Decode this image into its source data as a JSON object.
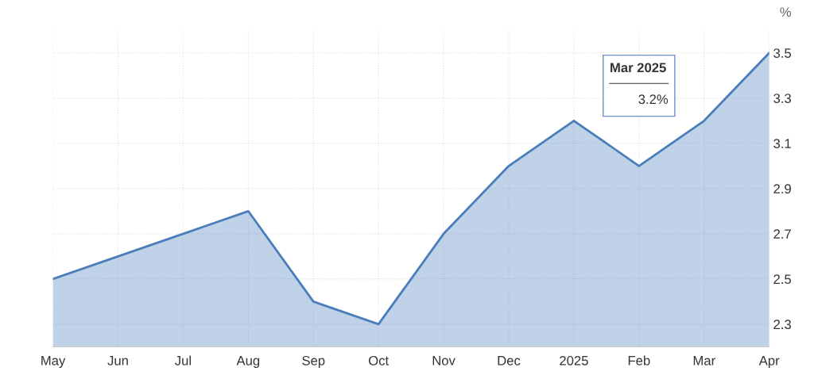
{
  "chart_data": {
    "type": "area",
    "ylabel": "%",
    "categories": [
      "May",
      "Jun",
      "Jul",
      "Aug",
      "Sep",
      "Oct",
      "Nov",
      "Dec",
      "2025",
      "Feb",
      "Mar",
      "Apr"
    ],
    "series": [
      {
        "color": "#4a7ebb",
        "values": [
          2.5,
          2.6,
          2.7,
          2.8,
          2.4,
          2.3,
          2.7,
          3.0,
          3.2,
          3.0,
          3.2,
          3.5
        ]
      }
    ],
    "ylim": [
      2.2,
      3.6
    ],
    "yticks": [
      2.3,
      2.5,
      2.7,
      2.9,
      3.1,
      3.3,
      3.5
    ],
    "grid": true,
    "annotations": [
      "Mar 2025",
      "3.2%"
    ]
  }
}
